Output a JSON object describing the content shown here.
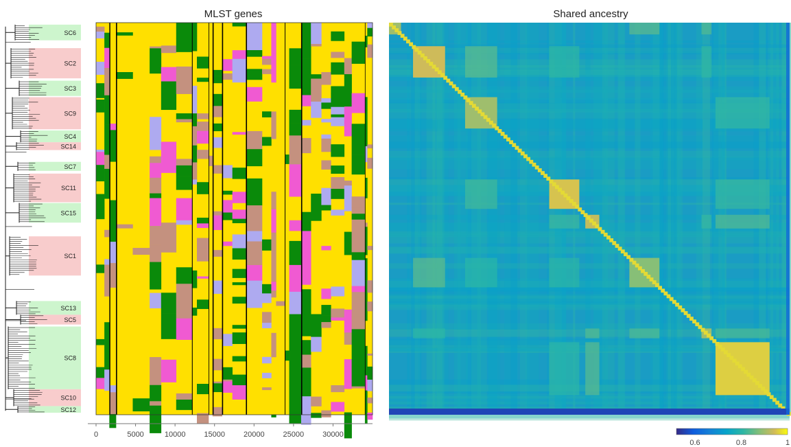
{
  "chart_data": [
    {
      "type": "heatmap",
      "title": "MLST genes",
      "x_ticks": [
        0,
        5000,
        10000,
        15000,
        20000,
        25000,
        30000
      ],
      "x_tick_labels": [
        "0",
        "5000",
        "10000",
        "15000",
        "20000",
        "25000",
        "30000"
      ],
      "xlim": [
        0,
        35000
      ],
      "colors": {
        "yellow": "#ffe000",
        "green": "#0a8a0a",
        "tan": "#c4917f",
        "lavender": "#aeaaf0",
        "pink": "#f05ad2",
        "black": "#000000"
      },
      "clusters": [
        {
          "label": "SC6",
          "shade": "green",
          "y0": 0.005,
          "y1": 0.045
        },
        {
          "label": "SC2",
          "shade": "red",
          "y0": 0.065,
          "y1": 0.142
        },
        {
          "label": "SC3",
          "shade": "green",
          "y0": 0.148,
          "y1": 0.187
        },
        {
          "label": "SC9",
          "shade": "red",
          "y0": 0.19,
          "y1": 0.272
        },
        {
          "label": "SC4",
          "shade": "green",
          "y0": 0.275,
          "y1": 0.305
        },
        {
          "label": "SC14",
          "shade": "red",
          "y0": 0.305,
          "y1": 0.325
        },
        {
          "label": "SC7",
          "shade": "green",
          "y0": 0.355,
          "y1": 0.378
        },
        {
          "label": "SC11",
          "shade": "red",
          "y0": 0.385,
          "y1": 0.458
        },
        {
          "label": "SC15",
          "shade": "green",
          "y0": 0.46,
          "y1": 0.51
        },
        {
          "label": "SC1",
          "shade": "red",
          "y0": 0.545,
          "y1": 0.645
        },
        {
          "label": "SC13",
          "shade": "green",
          "y0": 0.71,
          "y1": 0.745
        },
        {
          "label": "SC5",
          "shade": "red",
          "y0": 0.745,
          "y1": 0.77
        },
        {
          "label": "SC8",
          "shade": "green",
          "y0": 0.775,
          "y1": 0.935
        },
        {
          "label": "SC10",
          "shade": "red",
          "y0": 0.935,
          "y1": 0.978
        },
        {
          "label": "SC12",
          "shade": "green",
          "y0": 0.978,
          "y1": 0.995
        }
      ]
    },
    {
      "type": "heatmap",
      "title": "Shared ancestry",
      "colorbar": {
        "ticks": [
          0.6,
          0.8,
          1
        ],
        "tick_labels": [
          "0.6",
          "0.8",
          "1"
        ],
        "range": [
          0.52,
          1
        ]
      },
      "background_value": 0.76,
      "blocks": [
        {
          "a": 0.0,
          "b": 0.03,
          "v": 0.9
        },
        {
          "a": 0.06,
          "b": 0.14,
          "v": 0.94
        },
        {
          "a": 0.19,
          "b": 0.27,
          "v": 0.9
        },
        {
          "a": 0.4,
          "b": 0.475,
          "v": 0.95
        },
        {
          "a": 0.49,
          "b": 0.525,
          "v": 0.93
        },
        {
          "a": 0.6,
          "b": 0.675,
          "v": 0.88
        },
        {
          "a": 0.78,
          "b": 0.805,
          "v": 0.9
        },
        {
          "a": 0.815,
          "b": 0.95,
          "v": 0.96
        }
      ]
    }
  ]
}
